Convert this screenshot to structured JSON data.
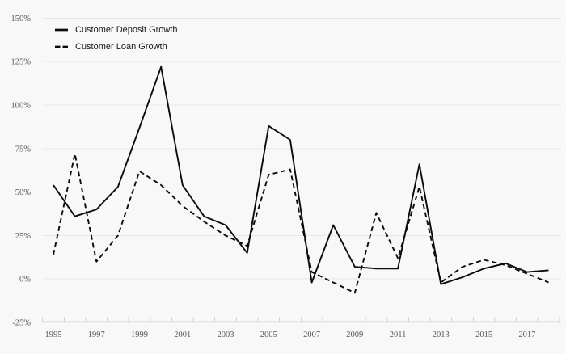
{
  "chart_data": {
    "type": "line",
    "title": "",
    "xlabel": "",
    "ylabel": "",
    "x": [
      1995,
      1996,
      1997,
      1998,
      1999,
      2000,
      2001,
      2002,
      2003,
      2004,
      2005,
      2006,
      2007,
      2008,
      2009,
      2010,
      2011,
      2012,
      2013,
      2014,
      2015,
      2016,
      2017,
      2018
    ],
    "series": [
      {
        "name": "Customer Deposit Growth",
        "line_style": "solid",
        "color": "#0b0b0b",
        "values": [
          54,
          36,
          40,
          53,
          87,
          122,
          54,
          36,
          31,
          15,
          88,
          80,
          -2,
          31,
          7,
          6,
          6,
          66,
          -3,
          1,
          6,
          9,
          4,
          5
        ]
      },
      {
        "name": "Customer Loan Growth",
        "line_style": "dashed",
        "color": "#0b0b0b",
        "values": [
          14,
          72,
          10,
          25,
          62,
          54,
          42,
          33,
          25,
          19,
          60,
          63,
          4,
          -2,
          -8,
          38,
          12,
          53,
          -2,
          7,
          11,
          8,
          3,
          -2
        ]
      }
    ],
    "ylim": [
      -25,
      150
    ],
    "yticks": [
      -25,
      0,
      25,
      50,
      75,
      100,
      125,
      150
    ],
    "ytick_suffix": "%",
    "xtick_labels": [
      1995,
      1997,
      1999,
      2001,
      2003,
      2005,
      2007,
      2009,
      2011,
      2013,
      2015,
      2017
    ],
    "grid": "horizontal",
    "legend_position": "top-left-inside"
  },
  "colors": {
    "background": "#f8f8f9",
    "gridline": "#e7e7e8",
    "axis": "#c9d3e2",
    "tick_label": "#55585c",
    "line": "#0b0b0b"
  }
}
